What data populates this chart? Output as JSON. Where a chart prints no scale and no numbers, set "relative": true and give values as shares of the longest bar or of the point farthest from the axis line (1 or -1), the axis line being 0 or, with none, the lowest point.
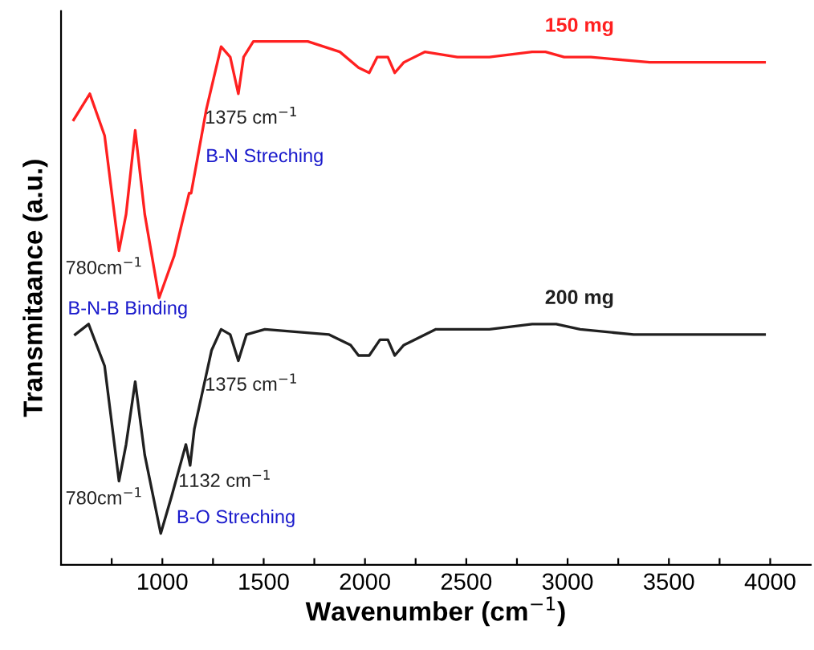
{
  "chart_data": {
    "type": "line",
    "relative": true,
    "xlabel": "Wavenumber (cm$^{−1}$)",
    "ylabel": "Transmitaance (a.u.)",
    "xlim": [
      500,
      4200
    ],
    "xticks": [
      {
        "value": 750,
        "label": null
      },
      1000,
      {
        "value": 1250,
        "label": null
      },
      1500,
      {
        "value": 1750,
        "label": null
      },
      2000,
      {
        "value": 2250,
        "label": null
      },
      2500,
      {
        "value": 2750,
        "label": null
      },
      3000,
      {
        "value": 3250,
        "label": null
      },
      3500,
      {
        "value": 3750,
        "label": null
      },
      4000
    ],
    "grid": false,
    "legend": false,
    "marker": "none",
    "line_style": "solid",
    "series": [
      {
        "name": "150 mg",
        "color": "#ff2020",
        "x": [
          562,
          642,
          715,
          786,
          821,
          866,
          913,
          984,
          1058,
          1132,
          1142,
          1217,
          1290,
          1335,
          1375,
          1401,
          1449,
          1718,
          1876,
          1968,
          2021,
          2060,
          2113,
          2147,
          2192,
          2295,
          2456,
          2614,
          2825,
          2891,
          2983,
          3115,
          3405,
          3563,
          3775,
          3972
        ],
        "values": [
          0.85,
          0.9,
          0.82,
          0.6,
          0.67,
          0.83,
          0.67,
          0.51,
          0.59,
          0.71,
          0.71,
          0.87,
          0.99,
          0.97,
          0.9,
          0.97,
          1.0,
          1.0,
          0.98,
          0.95,
          0.94,
          0.97,
          0.97,
          0.94,
          0.96,
          0.98,
          0.97,
          0.97,
          0.98,
          0.98,
          0.97,
          0.97,
          0.96,
          0.96,
          0.96,
          0.96
        ]
      },
      {
        "name": "200 mg",
        "color": "#202020",
        "x": [
          570,
          636,
          715,
          786,
          821,
          866,
          913,
          992,
          1045,
          1116,
          1137,
          1158,
          1243,
          1290,
          1335,
          1375,
          1415,
          1506,
          1823,
          1929,
          1968,
          2021,
          2074,
          2113,
          2147,
          2192,
          2350,
          2456,
          2614,
          2825,
          2944,
          3062,
          3326,
          3563,
          3775,
          3972
        ],
        "values": [
          0.44,
          0.46,
          0.38,
          0.16,
          0.23,
          0.35,
          0.21,
          0.06,
          0.13,
          0.23,
          0.19,
          0.26,
          0.41,
          0.45,
          0.44,
          0.39,
          0.44,
          0.45,
          0.44,
          0.42,
          0.4,
          0.4,
          0.43,
          0.43,
          0.4,
          0.42,
          0.45,
          0.45,
          0.45,
          0.46,
          0.46,
          0.45,
          0.44,
          0.44,
          0.44,
          0.44
        ]
      }
    ],
    "annotations": [
      {
        "text": "780cm$^{−1}$",
        "x": 786,
        "y": 0.6
      },
      {
        "text": "1375 cm$^{−1}$",
        "x": 1375,
        "y": 0.9
      },
      "B-N Streching",
      "B-N-B Binding",
      {
        "text": "780cm$^{−1}$",
        "x": 786,
        "y": 0.16
      },
      {
        "text": "1375 cm$^{−1}$",
        "x": 1375,
        "y": 0.39
      },
      {
        "text": "1132 cm$^{−1}$",
        "x": 1137,
        "y": 0.19
      },
      "B-O Streching"
    ]
  }
}
